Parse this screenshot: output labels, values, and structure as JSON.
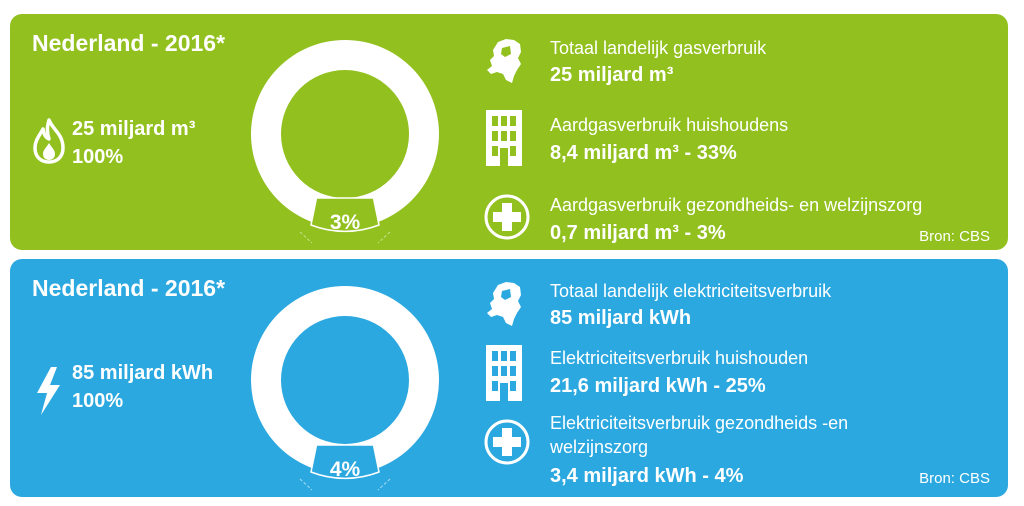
{
  "gas": {
    "title": "Nederland - 2016*",
    "main_icon": "flame-icon",
    "main_value": "25 miljard m³",
    "main_percent": "100%",
    "donut_percent_label": "3%",
    "donut_share": 3,
    "rows": [
      {
        "icon": "netherlands-map-icon",
        "label": "Totaal landelijk gasverbruik",
        "value": "25 miljard m³"
      },
      {
        "icon": "building-icon",
        "label": "Aardgasverbruik huishoudens",
        "value": "8,4 miljard m³ - 33%"
      },
      {
        "icon": "plus-cross-icon",
        "label": "Aardgasverbruik gezondheids- en welzijnszorg",
        "value": "0,7 miljard m³ - 3%"
      }
    ],
    "source": "Bron: CBS",
    "color": "#92c01f"
  },
  "electricity": {
    "title": "Nederland - 2016*",
    "main_icon": "lightning-icon",
    "main_value": "85 miljard kWh",
    "main_percent": "100%",
    "donut_percent_label": "4%",
    "donut_share": 4,
    "rows": [
      {
        "icon": "netherlands-map-icon",
        "label": "Totaal landelijk elektriciteitsverbruik",
        "value": "85 miljard kWh"
      },
      {
        "icon": "building-icon",
        "label": "Elektriciteitsverbruik huishouden",
        "value": "21,6 miljard kWh - 25%"
      },
      {
        "icon": "plus-cross-icon",
        "label": "Elektriciteitsverbruik  gezondheids -en",
        "label2": "welzijnszorg",
        "value": "3,4 miljard kWh - 4%"
      }
    ],
    "source": "Bron: CBS",
    "color": "#2ba8e0"
  }
}
